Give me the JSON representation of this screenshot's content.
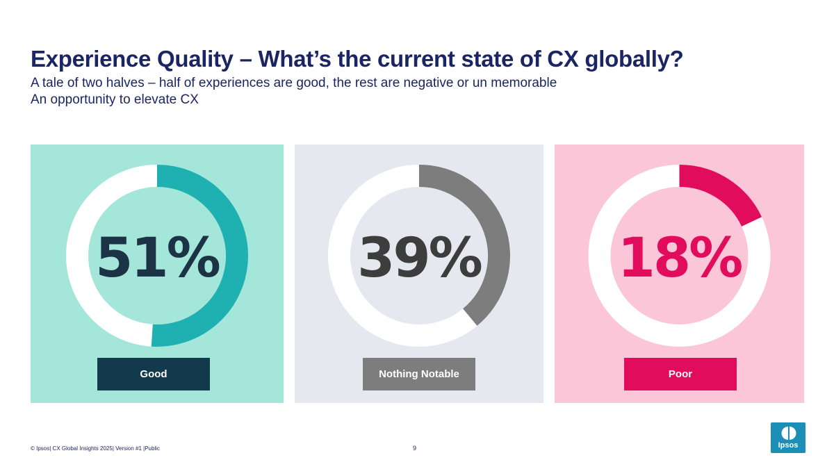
{
  "page": {
    "title": "Experience Quality – What’s the current state of CX globally?",
    "subtitle_line1": "A tale of two halves – half of experiences are good, the rest are negative or un memorable",
    "subtitle_line2": "An opportunity to elevate CX"
  },
  "chart_data": {
    "type": "pie",
    "title": "Experience Quality – What’s the current state of CX globally?",
    "series": [
      {
        "name": "Good",
        "value": 51,
        "value_label": "51%",
        "panel_color": "#a4e6da",
        "ring_color": "#1fb1b1",
        "text_color": "#1b3344",
        "label_bg": "#13394d"
      },
      {
        "name": "Nothing Notable",
        "value": 39,
        "value_label": "39%",
        "panel_color": "#e6e8ef",
        "ring_color": "#7d7d7d",
        "text_color": "#3d3d3d",
        "label_bg": "#7d7d7d"
      },
      {
        "name": "Poor",
        "value": 18,
        "value_label": "18%",
        "panel_color": "#fcc6d9",
        "ring_color": "#e10c5c",
        "text_color": "#e10c5c",
        "label_bg": "#e10c5c"
      }
    ]
  },
  "footer": {
    "text": "© Ipsos| CX Global Insights 2025| Version #1 |Public",
    "page_number": "9"
  },
  "logo": {
    "text": "Ipsos",
    "color": "#1b8fb5"
  }
}
